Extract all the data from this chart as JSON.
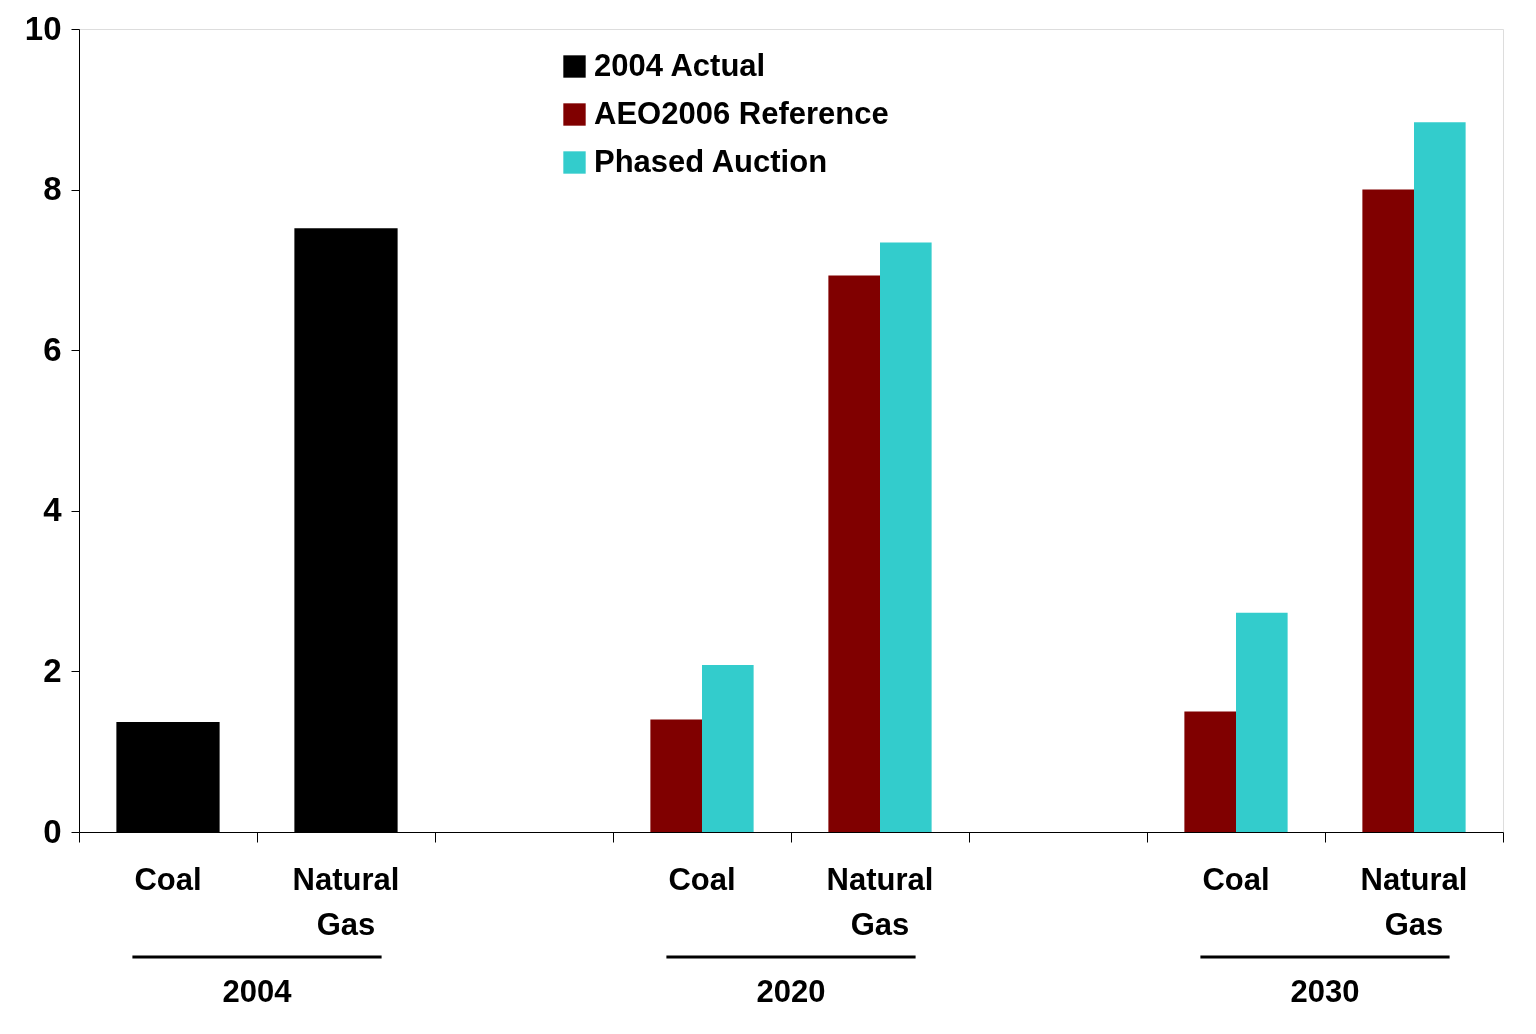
{
  "chart_data": {
    "type": "bar",
    "categories": [
      "Coal",
      "Natural Gas",
      null,
      "Coal",
      "Natural Gas",
      null,
      "Coal",
      "Natural Gas"
    ],
    "series": [
      {
        "name": "2004 Actual",
        "color": "#000000",
        "values": [
          1.37,
          7.52,
          null,
          null,
          null,
          null,
          null,
          null
        ]
      },
      {
        "name": "AEO2006 Reference",
        "color": "#800000",
        "values": [
          null,
          null,
          null,
          1.4,
          6.93,
          null,
          1.5,
          8.0
        ]
      },
      {
        "name": "Phased Auction",
        "color": "#33cccc",
        "values": [
          null,
          null,
          null,
          2.08,
          7.34,
          null,
          2.73,
          8.84
        ]
      }
    ],
    "ylim": [
      0,
      10
    ],
    "yticks": [
      0,
      2,
      4,
      6,
      8,
      10
    ],
    "grid": false,
    "legend": "top",
    "annotations": [
      "2004",
      "2020",
      "2030"
    ]
  }
}
